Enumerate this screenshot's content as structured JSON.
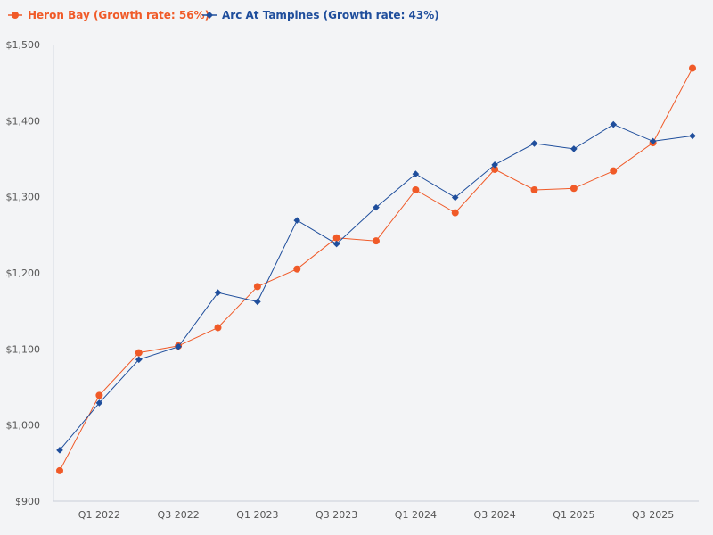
{
  "chart_data": {
    "type": "line",
    "categories": [
      "Q4 2021",
      "Q1 2022",
      "Q2 2022",
      "Q3 2022",
      "Q4 2022",
      "Q1 2023",
      "Q2 2023",
      "Q3 2023",
      "Q4 2023",
      "Q1 2024",
      "Q2 2024",
      "Q3 2024",
      "Q4 2024",
      "Q1 2025",
      "Q2 2025",
      "Q3 2025",
      "Q4 2025"
    ],
    "x_tick_labels": [
      "Q1 2022",
      "Q3 2022",
      "Q1 2023",
      "Q3 2023",
      "Q1 2024",
      "Q3 2024",
      "Q1 2025",
      "Q3 2025"
    ],
    "y_tick_labels": [
      "$900",
      "$1,000",
      "$1,100",
      "$1,200",
      "$1,300",
      "$1,400",
      "$1,500"
    ],
    "ylim": [
      900,
      1500
    ],
    "grid": false,
    "legend_position": "top-left",
    "series": [
      {
        "name": "Heron Bay (Growth rate: 56%)",
        "color": "#f05a28",
        "marker": "circle",
        "values": [
          940,
          1039,
          1095,
          1104,
          1128,
          1182,
          1205,
          1246,
          1242,
          1309,
          1279,
          1336,
          1309,
          1311,
          1334,
          1371,
          1469
        ]
      },
      {
        "name": "Arc At Tampines (Growth rate: 43%)",
        "color": "#1f4e9c",
        "marker": "diamond",
        "values": [
          967,
          1029,
          1086,
          1103,
          1174,
          1162,
          1269,
          1238,
          1286,
          1330,
          1299,
          1342,
          1370,
          1363,
          1395,
          1373,
          1380
        ]
      }
    ]
  }
}
